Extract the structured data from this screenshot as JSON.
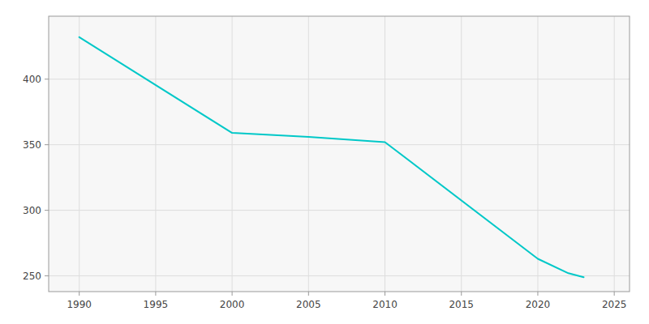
{
  "chart_data": {
    "type": "line",
    "x": [
      1990,
      2000,
      2005,
      2010,
      2020,
      2022,
      2023
    ],
    "values": [
      432,
      359,
      356,
      352,
      263,
      252,
      249
    ],
    "color": "#00C8C8",
    "xlim": [
      1988,
      2026
    ],
    "ylim": [
      238,
      448
    ],
    "xticks": [
      1990,
      1995,
      2000,
      2005,
      2010,
      2015,
      2020,
      2025
    ],
    "yticks": [
      250,
      300,
      350,
      400
    ],
    "grid": true
  }
}
